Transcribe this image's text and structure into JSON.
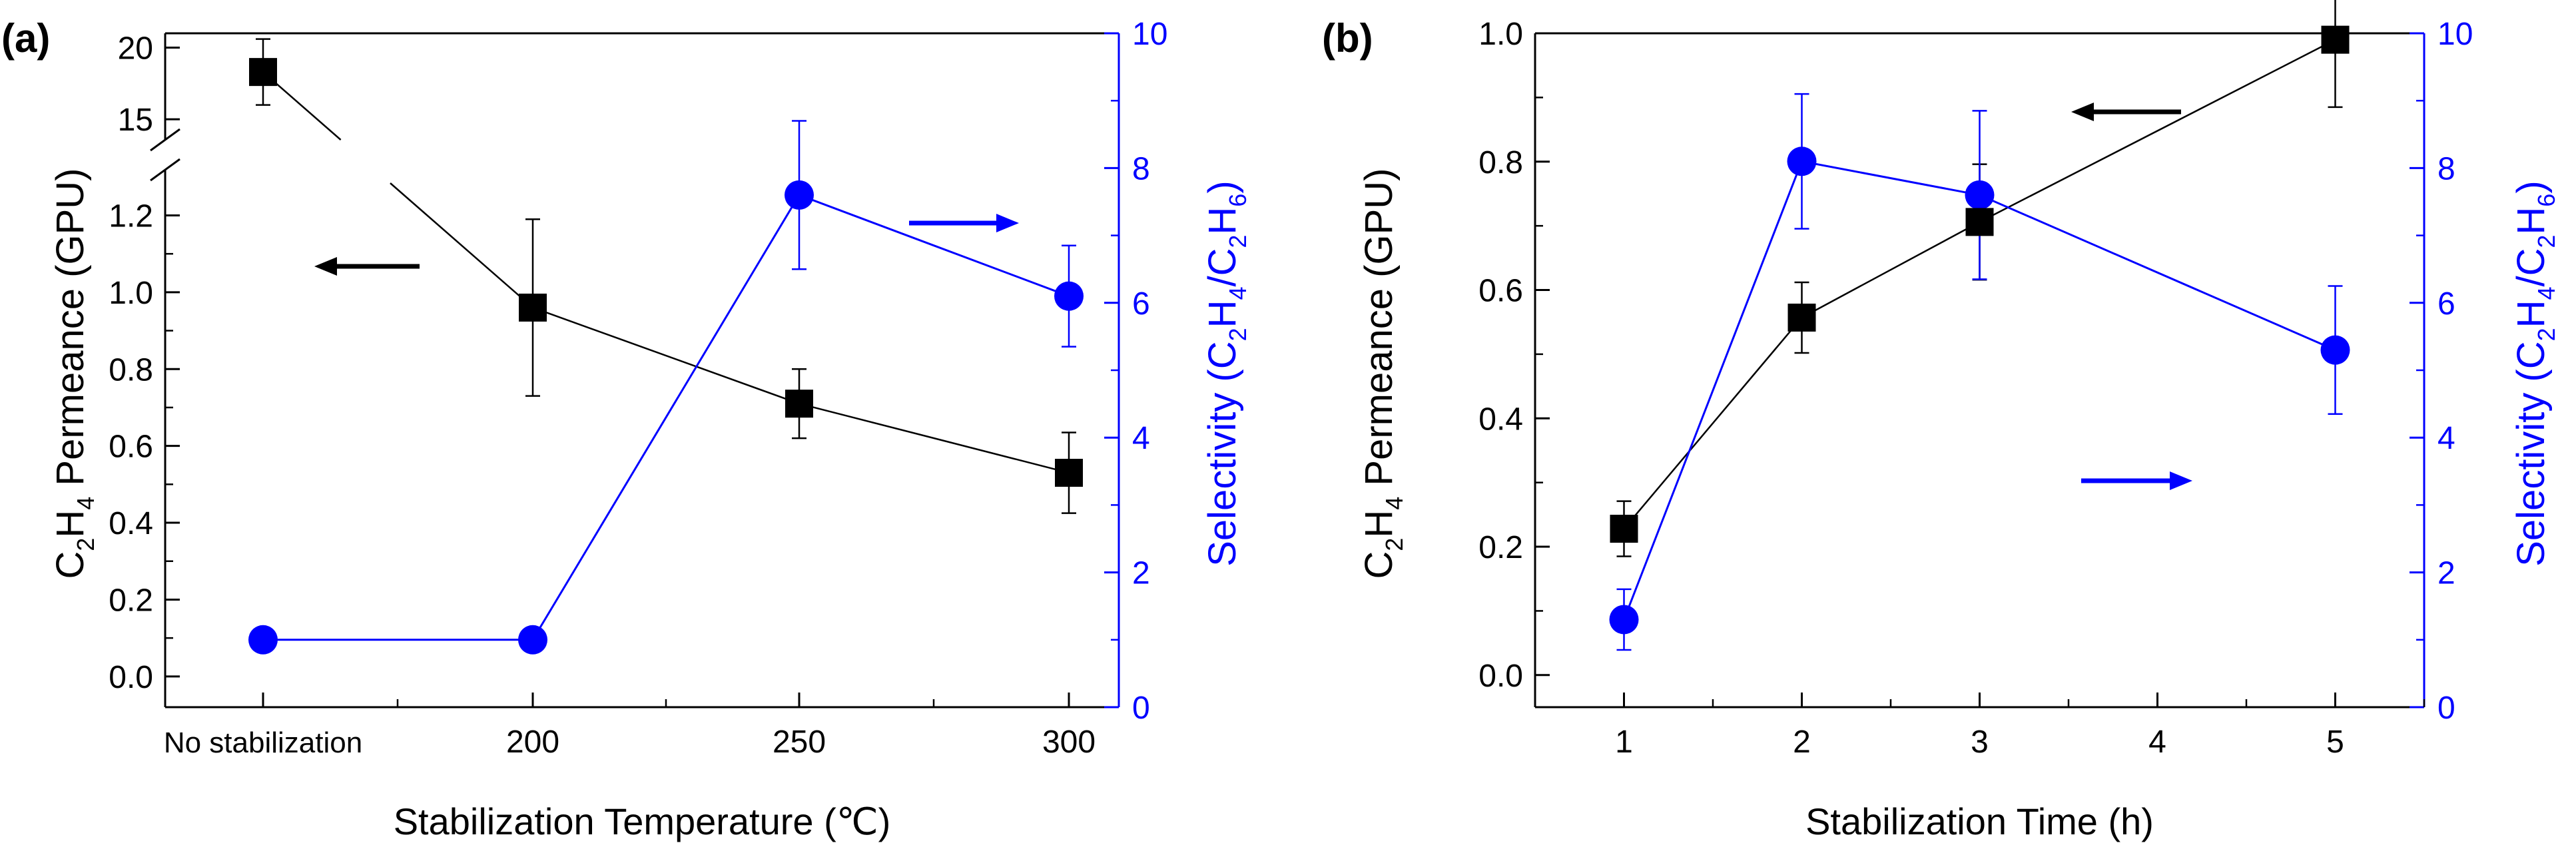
{
  "chart_data": [
    {
      "panel_label": "(a)",
      "type": "line",
      "xlabel": "Stabilization Temperature (℃)",
      "categories": [
        "No stabilization",
        "200",
        "250",
        "300"
      ],
      "y_left": {
        "label_parts": [
          "C",
          "2",
          "H",
          "4",
          " Permeance (GPU)"
        ],
        "lower_ylim": [
          -0.08,
          1.31
        ],
        "lower_ticks": [
          "0.0",
          "0.2",
          "0.4",
          "0.6",
          "0.8",
          "1.0",
          "1.2"
        ],
        "upper_ylim": [
          13.8,
          21
        ],
        "upper_ticks": [
          "15",
          "20"
        ],
        "break": "between 1.3 and 13.8"
      },
      "y_right": {
        "label_parts": [
          "Selectivity (C",
          "2",
          "H",
          "4",
          "/C",
          "2",
          "H",
          "6",
          ")"
        ],
        "ylim": [
          0,
          10
        ],
        "ticks": [
          "0",
          "2",
          "4",
          "6",
          "8",
          "10"
        ]
      },
      "series": [
        {
          "name": "C2H4 Permeance",
          "axis": "left",
          "marker": "square",
          "color": "#000000",
          "values": [
            18.3,
            0.96,
            0.71,
            0.53
          ],
          "errors": [
            2.3,
            0.23,
            0.09,
            0.105
          ]
        },
        {
          "name": "Selectivity (C2H4/C2H6)",
          "axis": "right",
          "marker": "circle",
          "color": "#0000ff",
          "values": [
            1.0,
            1.0,
            7.6,
            6.1
          ],
          "errors": [
            0,
            0,
            1.1,
            0.75
          ]
        }
      ],
      "annotations": [
        {
          "type": "arrow",
          "direction": "left",
          "color": "#000000",
          "meaning": "left axis"
        },
        {
          "type": "arrow",
          "direction": "right",
          "color": "#0000ff",
          "meaning": "right axis"
        }
      ]
    },
    {
      "panel_label": "(b)",
      "type": "line",
      "xlabel": "Stabilization Time (h)",
      "xlim": [
        0.5,
        5.5
      ],
      "xticks": [
        "1",
        "2",
        "3",
        "4",
        "5"
      ],
      "y_left": {
        "label_parts": [
          "C",
          "2",
          "H",
          "4",
          " Permeance (GPU)"
        ],
        "ylim": [
          -0.05,
          1.0
        ],
        "ticks": [
          "0.0",
          "0.2",
          "0.4",
          "0.6",
          "0.8",
          "1.0"
        ]
      },
      "y_right": {
        "label_parts": [
          "Selectivity (C",
          "2",
          "H",
          "4",
          "/C",
          "2",
          "H",
          "6",
          ")"
        ],
        "ylim": [
          0,
          10
        ],
        "ticks": [
          "0",
          "2",
          "4",
          "6",
          "8",
          "10"
        ]
      },
      "series": [
        {
          "name": "C2H4 Permeance",
          "axis": "left",
          "marker": "square",
          "color": "#000000",
          "x": [
            1,
            2,
            3,
            5
          ],
          "values": [
            0.228,
            0.557,
            0.706,
            0.99
          ],
          "errors": [
            0.043,
            0.055,
            0.09,
            0.105
          ]
        },
        {
          "name": "Selectivity (C2H4/C2H6)",
          "axis": "right",
          "marker": "circle",
          "color": "#0000ff",
          "x": [
            1,
            2,
            3,
            5
          ],
          "values": [
            1.3,
            8.1,
            7.6,
            5.3
          ],
          "errors": [
            0.45,
            1.0,
            1.25,
            0.95
          ]
        }
      ],
      "annotations": [
        {
          "type": "arrow",
          "direction": "left",
          "color": "#000000",
          "meaning": "left axis"
        },
        {
          "type": "arrow",
          "direction": "right",
          "color": "#0000ff",
          "meaning": "right axis"
        }
      ]
    }
  ]
}
